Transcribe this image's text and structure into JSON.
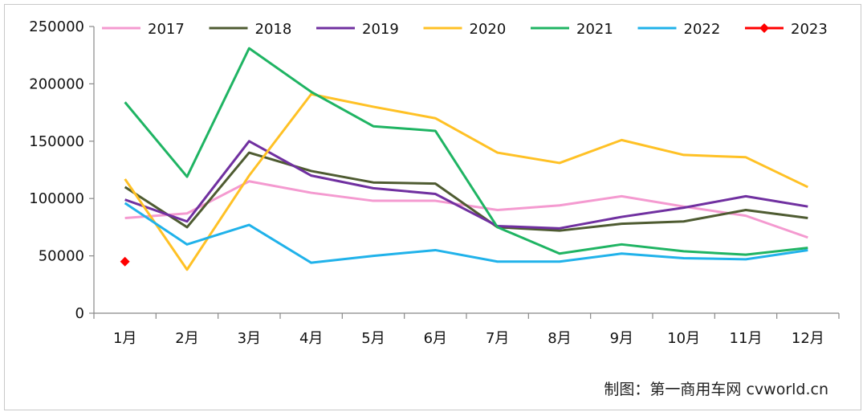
{
  "chart_data": {
    "type": "line",
    "categories": [
      "1月",
      "2月",
      "3月",
      "4月",
      "5月",
      "6月",
      "7月",
      "8月",
      "9月",
      "10月",
      "11月",
      "12月"
    ],
    "ylim": [
      0,
      250000
    ],
    "yticks": [
      "0",
      "50000",
      "100000",
      "150000",
      "200000",
      "250000"
    ],
    "grid": false,
    "legend_position": "top",
    "series": [
      {
        "name": "2017",
        "color": "#f49ad0",
        "values": [
          83000,
          87000,
          115000,
          105000,
          98000,
          98000,
          90000,
          94000,
          102000,
          93000,
          85000,
          66000
        ]
      },
      {
        "name": "2018",
        "color": "#4e5b31",
        "values": [
          110000,
          75000,
          140000,
          124000,
          114000,
          113000,
          75000,
          72000,
          78000,
          80000,
          90000,
          83000
        ]
      },
      {
        "name": "2019",
        "color": "#7030a0",
        "values": [
          99000,
          80000,
          150000,
          120000,
          109000,
          104000,
          76000,
          74000,
          84000,
          92000,
          102000,
          93000
        ]
      },
      {
        "name": "2020",
        "color": "#ffc125",
        "values": [
          117000,
          38000,
          120000,
          191000,
          180000,
          170000,
          140000,
          131000,
          151000,
          138000,
          136000,
          110000
        ]
      },
      {
        "name": "2021",
        "color": "#1fb463",
        "values": [
          184000,
          119000,
          231000,
          193000,
          163000,
          159000,
          75000,
          52000,
          60000,
          54000,
          51000,
          57000
        ]
      },
      {
        "name": "2022",
        "color": "#20b2ea",
        "values": [
          96000,
          60000,
          77000,
          44000,
          50000,
          55000,
          45000,
          45000,
          52000,
          48000,
          47000,
          55000
        ]
      },
      {
        "name": "2023",
        "color": "#ff0000",
        "marker": "diamond",
        "values": [
          45000,
          null,
          null,
          null,
          null,
          null,
          null,
          null,
          null,
          null,
          null,
          null
        ]
      }
    ]
  },
  "credit": "制图：第一商用车网 cvworld.cn"
}
